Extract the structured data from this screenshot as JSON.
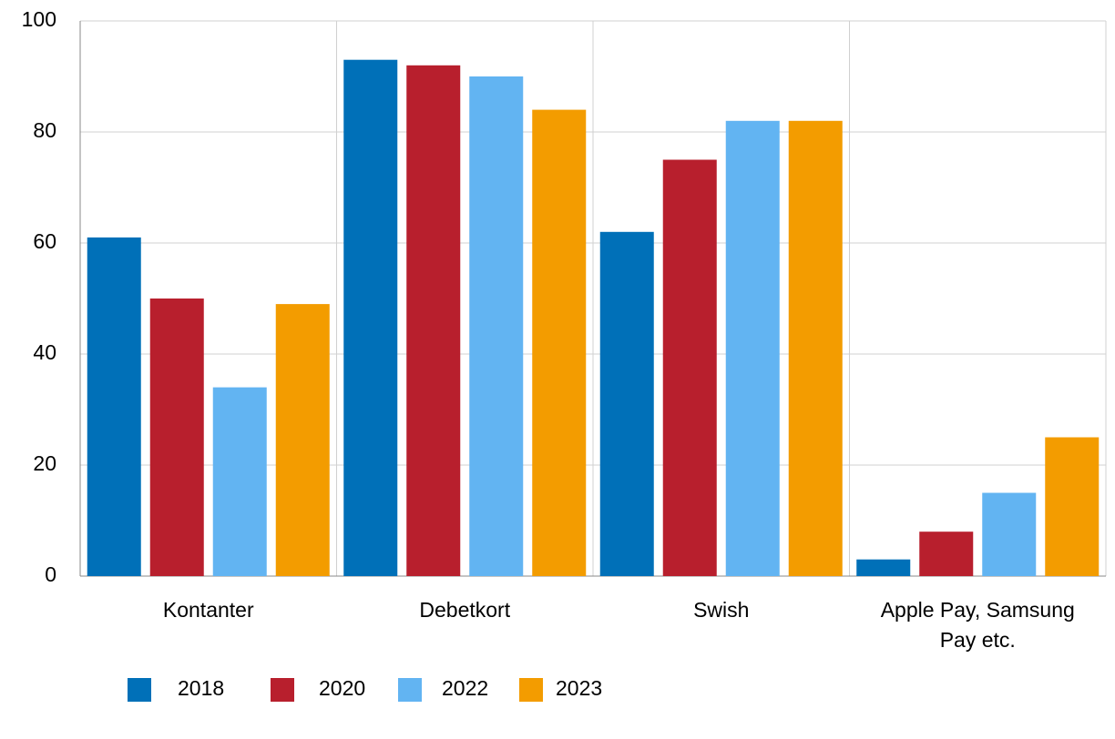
{
  "chart_data": {
    "type": "bar",
    "categories": [
      "Kontanter",
      "Debetkort",
      "Swish",
      "Apple Pay, Samsung Pay etc."
    ],
    "series": [
      {
        "name": "2018",
        "color": "#0070b8",
        "values": [
          61,
          93,
          62,
          3
        ]
      },
      {
        "name": "2020",
        "color": "#b81f2d",
        "values": [
          50,
          92,
          75,
          8
        ]
      },
      {
        "name": "2022",
        "color": "#62b4f2",
        "values": [
          34,
          90,
          82,
          15
        ]
      },
      {
        "name": "2023",
        "color": "#f39c00",
        "values": [
          49,
          84,
          82,
          25
        ]
      }
    ],
    "ylim": [
      0,
      100
    ],
    "yticks": [
      0,
      20,
      40,
      60,
      80,
      100
    ],
    "grid": true,
    "legend": "bottom"
  }
}
